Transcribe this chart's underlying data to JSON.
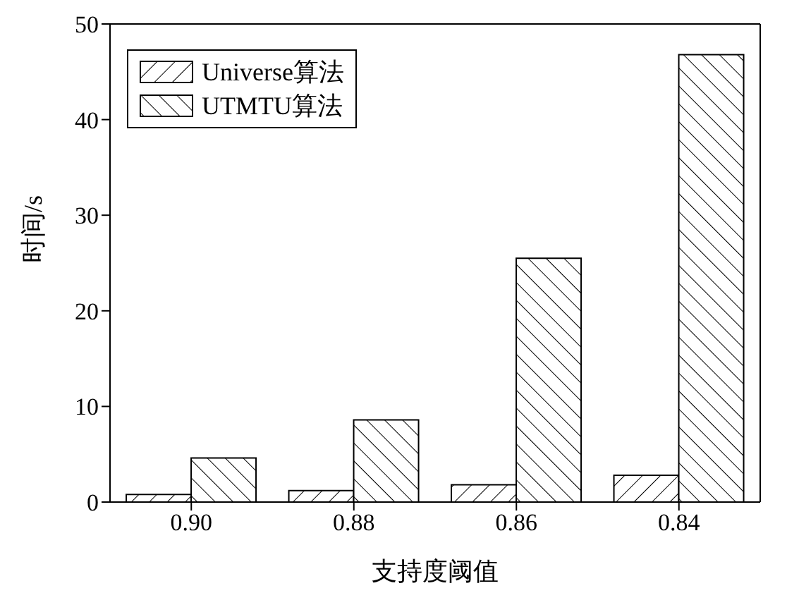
{
  "chart_data": {
    "type": "bar",
    "xlabel": "支持度阈值",
    "ylabel": "时间/s",
    "categories": [
      "0.90",
      "0.88",
      "0.86",
      "0.84"
    ],
    "series": [
      {
        "name": "Universe算法",
        "color": "#000000",
        "values": [
          0.8,
          1.2,
          1.8,
          2.8
        ]
      },
      {
        "name": "UTMTU算法",
        "color": "#000000",
        "values": [
          4.6,
          8.6,
          25.5,
          46.8
        ]
      }
    ],
    "ylim": [
      0,
      50
    ],
    "yticks": [
      0,
      10,
      20,
      30,
      40,
      50
    ],
    "legend": "top left"
  }
}
